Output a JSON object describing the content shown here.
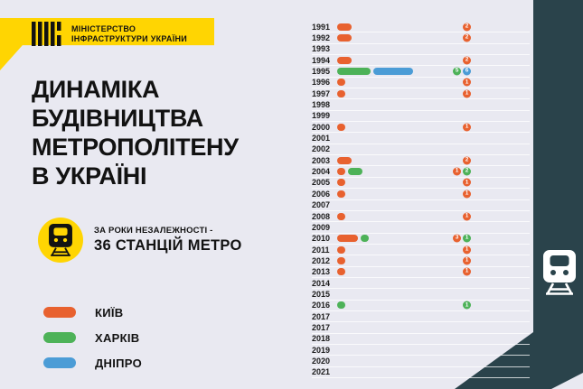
{
  "colors": {
    "background": "#E9E9F1",
    "accent_yellow": "#FFD502",
    "dark_teal": "#2A434B",
    "kyiv": "#E8612F",
    "kharkiv": "#4DB258",
    "dnipro": "#4B9CD6",
    "text": "#121212",
    "row_line": "rgba(255,255,255,0.75)"
  },
  "header": {
    "ministry_line1": "МІНІСТЕРСТВО",
    "ministry_line2": "ІНФРАСТРУКТУРИ УКРАЇНИ"
  },
  "title": {
    "line1": "ДИНАМІКА",
    "line2": "БУДІВНИЦТВА",
    "line3": "МЕТРОПОЛІТЕНУ",
    "line4": "В УКРАЇНІ"
  },
  "callout": {
    "line1": "ЗА РОКИ НЕЗАЛЕЖНОСТІ -",
    "line2": "36 СТАНЦІЙ МЕТРО"
  },
  "legend": [
    {
      "label": "КИЇВ",
      "city": "kyiv"
    },
    {
      "label": "ХАРКІВ",
      "city": "kharkiv"
    },
    {
      "label": "ДНІПРО",
      "city": "dnipro"
    }
  ],
  "chart_data": {
    "type": "bar",
    "orientation": "horizontal",
    "stacked": true,
    "unit": "metro stations opened per year",
    "value_labels": "circled number badge at row end, colored by city",
    "total": 36,
    "categories": [
      "1991",
      "1992",
      "1993",
      "1994",
      "1995",
      "1996",
      "1997",
      "1998",
      "1999",
      "2000",
      "2001",
      "2002",
      "2003",
      "2004",
      "2005",
      "2006",
      "2007",
      "2008",
      "2009",
      "2010",
      "2011",
      "2012",
      "2013",
      "2014",
      "2015",
      "2016",
      "2017",
      "2017",
      "2018",
      "2019",
      "2020",
      "2021"
    ],
    "series": [
      {
        "name": "КИЇВ",
        "city": "kyiv",
        "values": [
          2,
          2,
          0,
          2,
          0,
          1,
          1,
          0,
          0,
          1,
          0,
          0,
          2,
          1,
          1,
          1,
          0,
          1,
          0,
          3,
          1,
          1,
          1,
          0,
          0,
          0,
          0,
          0,
          0,
          0,
          0,
          0
        ]
      },
      {
        "name": "ХАРКІВ",
        "city": "kharkiv",
        "values": [
          0,
          0,
          0,
          0,
          5,
          0,
          0,
          0,
          0,
          0,
          0,
          0,
          0,
          2,
          0,
          0,
          0,
          0,
          0,
          1,
          0,
          0,
          0,
          0,
          0,
          1,
          0,
          0,
          0,
          0,
          0,
          0
        ]
      },
      {
        "name": "ДНІПРО",
        "city": "dnipro",
        "values": [
          0,
          0,
          0,
          0,
          6,
          0,
          0,
          0,
          0,
          0,
          0,
          0,
          0,
          0,
          0,
          0,
          0,
          0,
          0,
          0,
          0,
          0,
          0,
          0,
          0,
          0,
          0,
          0,
          0,
          0,
          0,
          0
        ]
      }
    ]
  }
}
